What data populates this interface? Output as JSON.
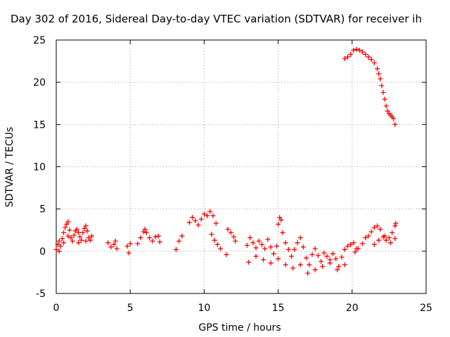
{
  "chart_data": {
    "type": "scatter",
    "title": "Day 302 of 2016, Sidereal Day-to-day VTEC variation (SDTVAR) for receiver ih",
    "xlabel": "GPS time / hours",
    "ylabel": "SDTVAR / TECUs",
    "xlim": [
      0,
      25
    ],
    "ylim": [
      -5,
      25
    ],
    "xticks": [
      0,
      5,
      10,
      15,
      20,
      25
    ],
    "yticks": [
      -5,
      0,
      5,
      10,
      15,
      20,
      25
    ],
    "grid": true,
    "marker": "+",
    "series": [
      {
        "name": "SDTVAR",
        "color": "#ff0000",
        "points": [
          [
            0.0,
            0.2
          ],
          [
            0.1,
            0.8
          ],
          [
            0.2,
            1.2
          ],
          [
            0.3,
            0.6
          ],
          [
            0.4,
            1.5
          ],
          [
            0.5,
            2.2
          ],
          [
            0.6,
            2.8
          ],
          [
            0.7,
            3.2
          ],
          [
            0.8,
            3.5
          ],
          [
            0.9,
            2.5
          ],
          [
            1.0,
            1.6
          ],
          [
            1.1,
            1.2
          ],
          [
            1.2,
            1.9
          ],
          [
            1.3,
            2.4
          ],
          [
            1.4,
            2.6
          ],
          [
            1.5,
            2.2
          ],
          [
            1.6,
            1.7
          ],
          [
            1.7,
            1.3
          ],
          [
            1.8,
            2.2
          ],
          [
            1.9,
            2.7
          ],
          [
            2.0,
            3.0
          ],
          [
            2.1,
            2.4
          ],
          [
            2.2,
            1.6
          ],
          [
            2.3,
            1.3
          ],
          [
            2.4,
            1.8
          ],
          [
            0.2,
            0.0
          ],
          [
            0.5,
            1.0
          ],
          [
            0.8,
            1.8
          ],
          [
            1.5,
            1.0
          ],
          [
            2.0,
            1.2
          ],
          [
            3.5,
            1.0
          ],
          [
            3.7,
            0.5
          ],
          [
            3.9,
            0.8
          ],
          [
            4.0,
            1.2
          ],
          [
            4.1,
            0.3
          ],
          [
            4.8,
            0.6
          ],
          [
            4.9,
            -0.2
          ],
          [
            5.0,
            0.9
          ],
          [
            5.5,
            0.9
          ],
          [
            5.7,
            1.6
          ],
          [
            5.9,
            2.3
          ],
          [
            6.0,
            2.6
          ],
          [
            6.1,
            2.2
          ],
          [
            6.3,
            1.6
          ],
          [
            6.5,
            1.2
          ],
          [
            6.7,
            1.7
          ],
          [
            6.9,
            1.8
          ],
          [
            7.0,
            1.1
          ],
          [
            8.1,
            0.2
          ],
          [
            8.3,
            1.2
          ],
          [
            8.5,
            1.8
          ],
          [
            9.0,
            3.4
          ],
          [
            9.2,
            4.0
          ],
          [
            9.4,
            3.6
          ],
          [
            9.6,
            3.1
          ],
          [
            9.8,
            3.8
          ],
          [
            10.0,
            4.4
          ],
          [
            10.2,
            4.2
          ],
          [
            10.4,
            4.7
          ],
          [
            10.6,
            4.2
          ],
          [
            10.8,
            3.3
          ],
          [
            10.5,
            2.0
          ],
          [
            10.7,
            1.3
          ],
          [
            10.9,
            0.8
          ],
          [
            11.1,
            0.3
          ],
          [
            11.5,
            -0.4
          ],
          [
            11.6,
            2.6
          ],
          [
            11.8,
            2.2
          ],
          [
            12.0,
            1.7
          ],
          [
            12.1,
            1.2
          ],
          [
            12.9,
            0.7
          ],
          [
            13.1,
            1.6
          ],
          [
            13.3,
            1.0
          ],
          [
            13.5,
            0.4
          ],
          [
            13.7,
            1.2
          ],
          [
            13.9,
            0.8
          ],
          [
            14.1,
            0.3
          ],
          [
            14.3,
            1.4
          ],
          [
            14.5,
            0.5
          ],
          [
            14.7,
            -0.3
          ],
          [
            14.9,
            0.6
          ],
          [
            15.0,
            3.2
          ],
          [
            15.1,
            4.0
          ],
          [
            15.2,
            3.7
          ],
          [
            15.3,
            2.2
          ],
          [
            15.5,
            1.0
          ],
          [
            15.7,
            0.2
          ],
          [
            15.9,
            -0.6
          ],
          [
            16.1,
            0.2
          ],
          [
            16.3,
            1.0
          ],
          [
            16.5,
            1.6
          ],
          [
            16.7,
            0.5
          ],
          [
            16.9,
            -0.8
          ],
          [
            17.1,
            -1.6
          ],
          [
            17.3,
            -0.4
          ],
          [
            17.5,
            0.3
          ],
          [
            17.7,
            -0.5
          ],
          [
            17.9,
            -1.2
          ],
          [
            18.1,
            -0.2
          ],
          [
            18.3,
            -0.6
          ],
          [
            18.5,
            -1.0
          ],
          [
            18.7,
            -0.3
          ],
          [
            18.9,
            -0.9
          ],
          [
            19.1,
            -1.8
          ],
          [
            19.3,
            -0.7
          ],
          [
            19.5,
            0.2
          ],
          [
            19.7,
            0.6
          ],
          [
            19.9,
            0.8
          ],
          [
            20.1,
            1.0
          ],
          [
            20.3,
            0.3
          ],
          [
            13.0,
            -1.3
          ],
          [
            13.5,
            -0.6
          ],
          [
            14.0,
            -1.0
          ],
          [
            14.5,
            -1.4
          ],
          [
            15.0,
            -0.9
          ],
          [
            15.5,
            -1.6
          ],
          [
            16.0,
            -2.0
          ],
          [
            16.5,
            -1.6
          ],
          [
            17.0,
            -2.6
          ],
          [
            17.5,
            -2.2
          ],
          [
            18.0,
            -1.8
          ],
          [
            18.5,
            -1.4
          ],
          [
            19.0,
            -2.2
          ],
          [
            19.5,
            -1.6
          ],
          [
            20.2,
            -0.1
          ],
          [
            20.4,
            0.3
          ],
          [
            20.7,
            0.9
          ],
          [
            20.9,
            1.6
          ],
          [
            21.1,
            1.8
          ],
          [
            21.3,
            2.3
          ],
          [
            21.5,
            2.8
          ],
          [
            21.7,
            3.0
          ],
          [
            21.9,
            2.6
          ],
          [
            22.1,
            1.7
          ],
          [
            22.3,
            1.3
          ],
          [
            22.5,
            1.6
          ],
          [
            22.7,
            2.2
          ],
          [
            22.9,
            3.0
          ],
          [
            22.95,
            3.3
          ],
          [
            21.5,
            0.8
          ],
          [
            21.8,
            1.3
          ],
          [
            22.2,
            1.8
          ],
          [
            22.6,
            1.0
          ],
          [
            22.9,
            1.5
          ],
          [
            19.5,
            22.8
          ],
          [
            19.7,
            23.0
          ],
          [
            19.9,
            23.3
          ],
          [
            20.1,
            23.8
          ],
          [
            20.3,
            23.9
          ],
          [
            20.5,
            23.8
          ],
          [
            20.7,
            23.6
          ],
          [
            20.9,
            23.3
          ],
          [
            21.1,
            23.0
          ],
          [
            21.3,
            22.7
          ],
          [
            21.5,
            22.3
          ],
          [
            21.7,
            21.6
          ],
          [
            21.8,
            21.0
          ],
          [
            21.9,
            20.4
          ],
          [
            22.0,
            19.6
          ],
          [
            22.1,
            18.8
          ],
          [
            22.2,
            18.0
          ],
          [
            22.3,
            17.2
          ],
          [
            22.4,
            16.6
          ],
          [
            22.5,
            16.3
          ],
          [
            22.6,
            16.1
          ],
          [
            22.7,
            15.9
          ],
          [
            22.8,
            15.7
          ],
          [
            22.9,
            15.0
          ]
        ]
      }
    ]
  }
}
